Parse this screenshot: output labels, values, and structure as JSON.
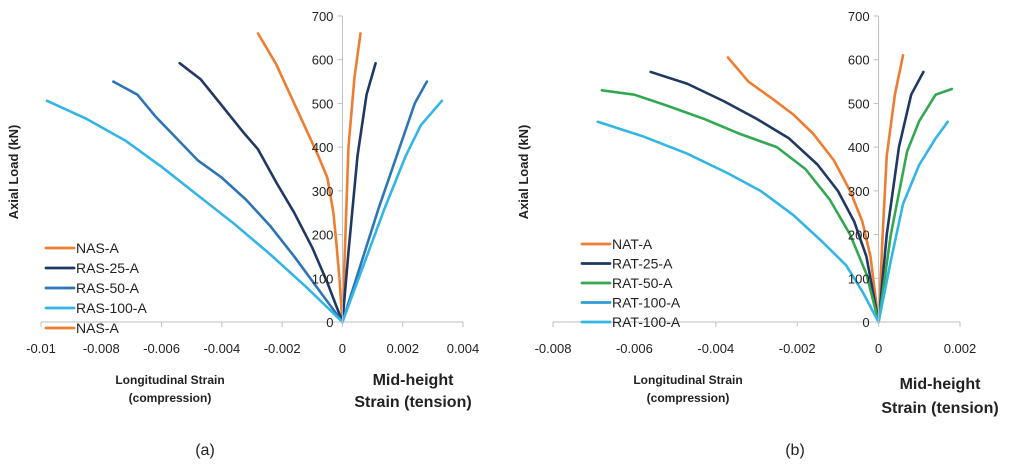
{
  "chart_data": [
    {
      "type": "line",
      "ylabel": "Axial Load (kN)",
      "xlabel_left": [
        "Longitudinal Strain",
        "(compression)"
      ],
      "xlabel_right": [
        "Mid-height",
        "Strain (tension)"
      ],
      "caption": "(a)",
      "xlim": [
        -0.01,
        0.004
      ],
      "ylim": [
        0,
        700
      ],
      "x_ticks": [
        -0.01,
        -0.008,
        -0.006,
        -0.004,
        -0.002,
        0,
        0.002,
        0.004
      ],
      "x_tick_labels": [
        "-0.01",
        "-0.008",
        "-0.006",
        "-0.004",
        "-0.002",
        "0",
        "0.002",
        "0.004"
      ],
      "y_ticks": [
        0,
        100,
        200,
        300,
        400,
        500,
        600,
        700
      ],
      "y_tick_labels": [
        "0",
        "100",
        "200",
        "300",
        "400",
        "500",
        "600",
        "700"
      ],
      "grid": false,
      "legend_position": "lower-left",
      "legend": [
        {
          "label": "NAS-A",
          "color": "#ED7D31"
        },
        {
          "label": "RAS-25-A",
          "color": "#1F3864"
        },
        {
          "label": "RAS-50-A",
          "color": "#2E75B6"
        },
        {
          "label": "RAS-100-A",
          "color": "#33B5E5"
        },
        {
          "label": "NAS-A",
          "color": "#ED7D31"
        }
      ],
      "series": [
        {
          "color": "#ED7D31",
          "x": [
            -0.0028,
            -0.0022,
            -0.0016,
            -0.0012,
            -0.0008,
            -0.0005,
            -0.0003,
            -0.0002,
            -0.0001,
            0
          ],
          "y": [
            660,
            590,
            500,
            440,
            380,
            330,
            250,
            180,
            100,
            0
          ]
        },
        {
          "color": "#ED7D31",
          "x": [
            0,
            0.0001,
            0.0002,
            0.0004,
            0.0006
          ],
          "y": [
            0,
            200,
            400,
            560,
            660
          ]
        },
        {
          "color": "#1F3864",
          "x": [
            -0.0054,
            -0.0047,
            -0.004,
            -0.0033,
            -0.0028,
            -0.0022,
            -0.0016,
            -0.001,
            -0.0005,
            0
          ],
          "y": [
            592,
            555,
            495,
            435,
            395,
            320,
            250,
            170,
            90,
            0
          ]
        },
        {
          "color": "#1F3864",
          "x": [
            0,
            0.0002,
            0.0005,
            0.0008,
            0.0011
          ],
          "y": [
            0,
            160,
            380,
            520,
            592
          ]
        },
        {
          "color": "#2E75B6",
          "x": [
            -0.0076,
            -0.0068,
            -0.0062,
            -0.0055,
            -0.0048,
            -0.004,
            -0.0032,
            -0.0024,
            -0.0016,
            -0.0008,
            0
          ],
          "y": [
            550,
            520,
            470,
            420,
            370,
            330,
            280,
            220,
            150,
            75,
            0
          ]
        },
        {
          "color": "#2E75B6",
          "x": [
            0,
            0.0006,
            0.0012,
            0.0018,
            0.0024,
            0.0028
          ],
          "y": [
            0,
            130,
            260,
            380,
            500,
            550
          ]
        },
        {
          "color": "#33B5E5",
          "x": [
            -0.0098,
            -0.0085,
            -0.0072,
            -0.006,
            -0.0048,
            -0.0036,
            -0.0024,
            -0.0012,
            0
          ],
          "y": [
            506,
            465,
            415,
            355,
            290,
            225,
            155,
            80,
            0
          ]
        },
        {
          "color": "#33B5E5",
          "x": [
            0,
            0.0007,
            0.0014,
            0.0021,
            0.0026,
            0.0033
          ],
          "y": [
            0,
            130,
            260,
            380,
            450,
            506
          ]
        }
      ]
    },
    {
      "type": "line",
      "ylabel": "Axial Load (kN)",
      "xlabel_left": [
        "Longitudinal Strain",
        "(compression)"
      ],
      "xlabel_right": [
        "Mid-height",
        "Strain (tension)"
      ],
      "caption": "(b)",
      "xlim": [
        -0.008,
        0.002
      ],
      "ylim": [
        0,
        700
      ],
      "x_ticks": [
        -0.008,
        -0.006,
        -0.004,
        -0.002,
        0,
        0.002
      ],
      "x_tick_labels": [
        "-0.008",
        "-0.006",
        "-0.004",
        "-0.002",
        "0",
        "0.002"
      ],
      "y_ticks": [
        0,
        100,
        200,
        300,
        400,
        500,
        600,
        700
      ],
      "y_tick_labels": [
        "0",
        "100",
        "200",
        "300",
        "400",
        "500",
        "600",
        "700"
      ],
      "grid": false,
      "legend_position": "lower-left",
      "legend": [
        {
          "label": "NAT-A",
          "color": "#ED7D31"
        },
        {
          "label": "RAT-25-A",
          "color": "#1F3864"
        },
        {
          "label": "RAT-50-A",
          "color": "#33A852"
        },
        {
          "label": "RAT-100-A",
          "color": "#2E9AD6"
        },
        {
          "label": "RAT-100-A",
          "color": "#33B5E5"
        }
      ],
      "series": [
        {
          "color": "#ED7D31",
          "x": [
            -0.0037,
            -0.0032,
            -0.0026,
            -0.0021,
            -0.0016,
            -0.0011,
            -0.0007,
            -0.0004,
            -0.0002,
            0
          ],
          "y": [
            605,
            550,
            510,
            475,
            430,
            370,
            300,
            230,
            150,
            0
          ]
        },
        {
          "color": "#ED7D31",
          "x": [
            0,
            0.0001,
            0.0002,
            0.0004,
            0.0006
          ],
          "y": [
            0,
            200,
            380,
            520,
            610
          ]
        },
        {
          "color": "#1F3864",
          "x": [
            -0.0056,
            -0.0047,
            -0.0038,
            -0.003,
            -0.0022,
            -0.0015,
            -0.001,
            -0.0006,
            -0.0003,
            0
          ],
          "y": [
            572,
            545,
            505,
            465,
            420,
            360,
            300,
            230,
            150,
            0
          ]
        },
        {
          "color": "#1F3864",
          "x": [
            0,
            0.0002,
            0.0005,
            0.0008,
            0.0011
          ],
          "y": [
            0,
            200,
            400,
            520,
            572
          ]
        },
        {
          "color": "#33A852",
          "x": [
            -0.0068,
            -0.006,
            -0.0052,
            -0.0043,
            -0.0034,
            -0.0025,
            -0.0018,
            -0.0012,
            -0.0007,
            -0.0003,
            0
          ],
          "y": [
            530,
            520,
            495,
            465,
            430,
            400,
            350,
            280,
            200,
            110,
            0
          ]
        },
        {
          "color": "#33A852",
          "x": [
            0,
            0.0003,
            0.0007,
            0.001,
            0.0014,
            0.0018
          ],
          "y": [
            0,
            200,
            390,
            460,
            520,
            533
          ]
        },
        {
          "color": "#33B5E5",
          "x": [
            -0.0069,
            -0.0058,
            -0.0047,
            -0.0037,
            -0.0029,
            -0.0021,
            -0.0014,
            -0.0008,
            -0.0004,
            0
          ],
          "y": [
            458,
            425,
            385,
            340,
            300,
            245,
            185,
            130,
            70,
            0
          ]
        },
        {
          "color": "#33B5E5",
          "x": [
            0,
            0.0003,
            0.0006,
            0.001,
            0.0014,
            0.0017
          ],
          "y": [
            0,
            140,
            270,
            360,
            420,
            458
          ]
        }
      ]
    }
  ]
}
